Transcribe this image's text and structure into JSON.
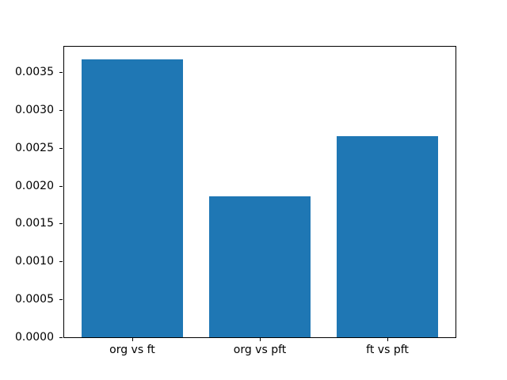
{
  "chart_data": {
    "type": "bar",
    "title": "",
    "xlabel": "",
    "ylabel": "",
    "categories": [
      "org vs ft",
      "org vs pft",
      "ft vs pft"
    ],
    "values": [
      0.00367,
      0.00186,
      0.00265
    ],
    "bar_color": "#1f77b4",
    "background_color": "#ffffff",
    "spine_color": "#000000",
    "grid": false,
    "legend": null,
    "ylim": [
      0,
      0.003854
    ],
    "xlim": [
      -0.54,
      2.54
    ],
    "bar_width": 0.8,
    "yticks": [
      0.0,
      0.0005,
      0.001,
      0.0015,
      0.002,
      0.0025,
      0.003,
      0.0035
    ],
    "ytick_labels": [
      "0.0000",
      "0.0005",
      "0.0010",
      "0.0015",
      "0.0020",
      "0.0025",
      "0.0030",
      "0.0035"
    ]
  }
}
